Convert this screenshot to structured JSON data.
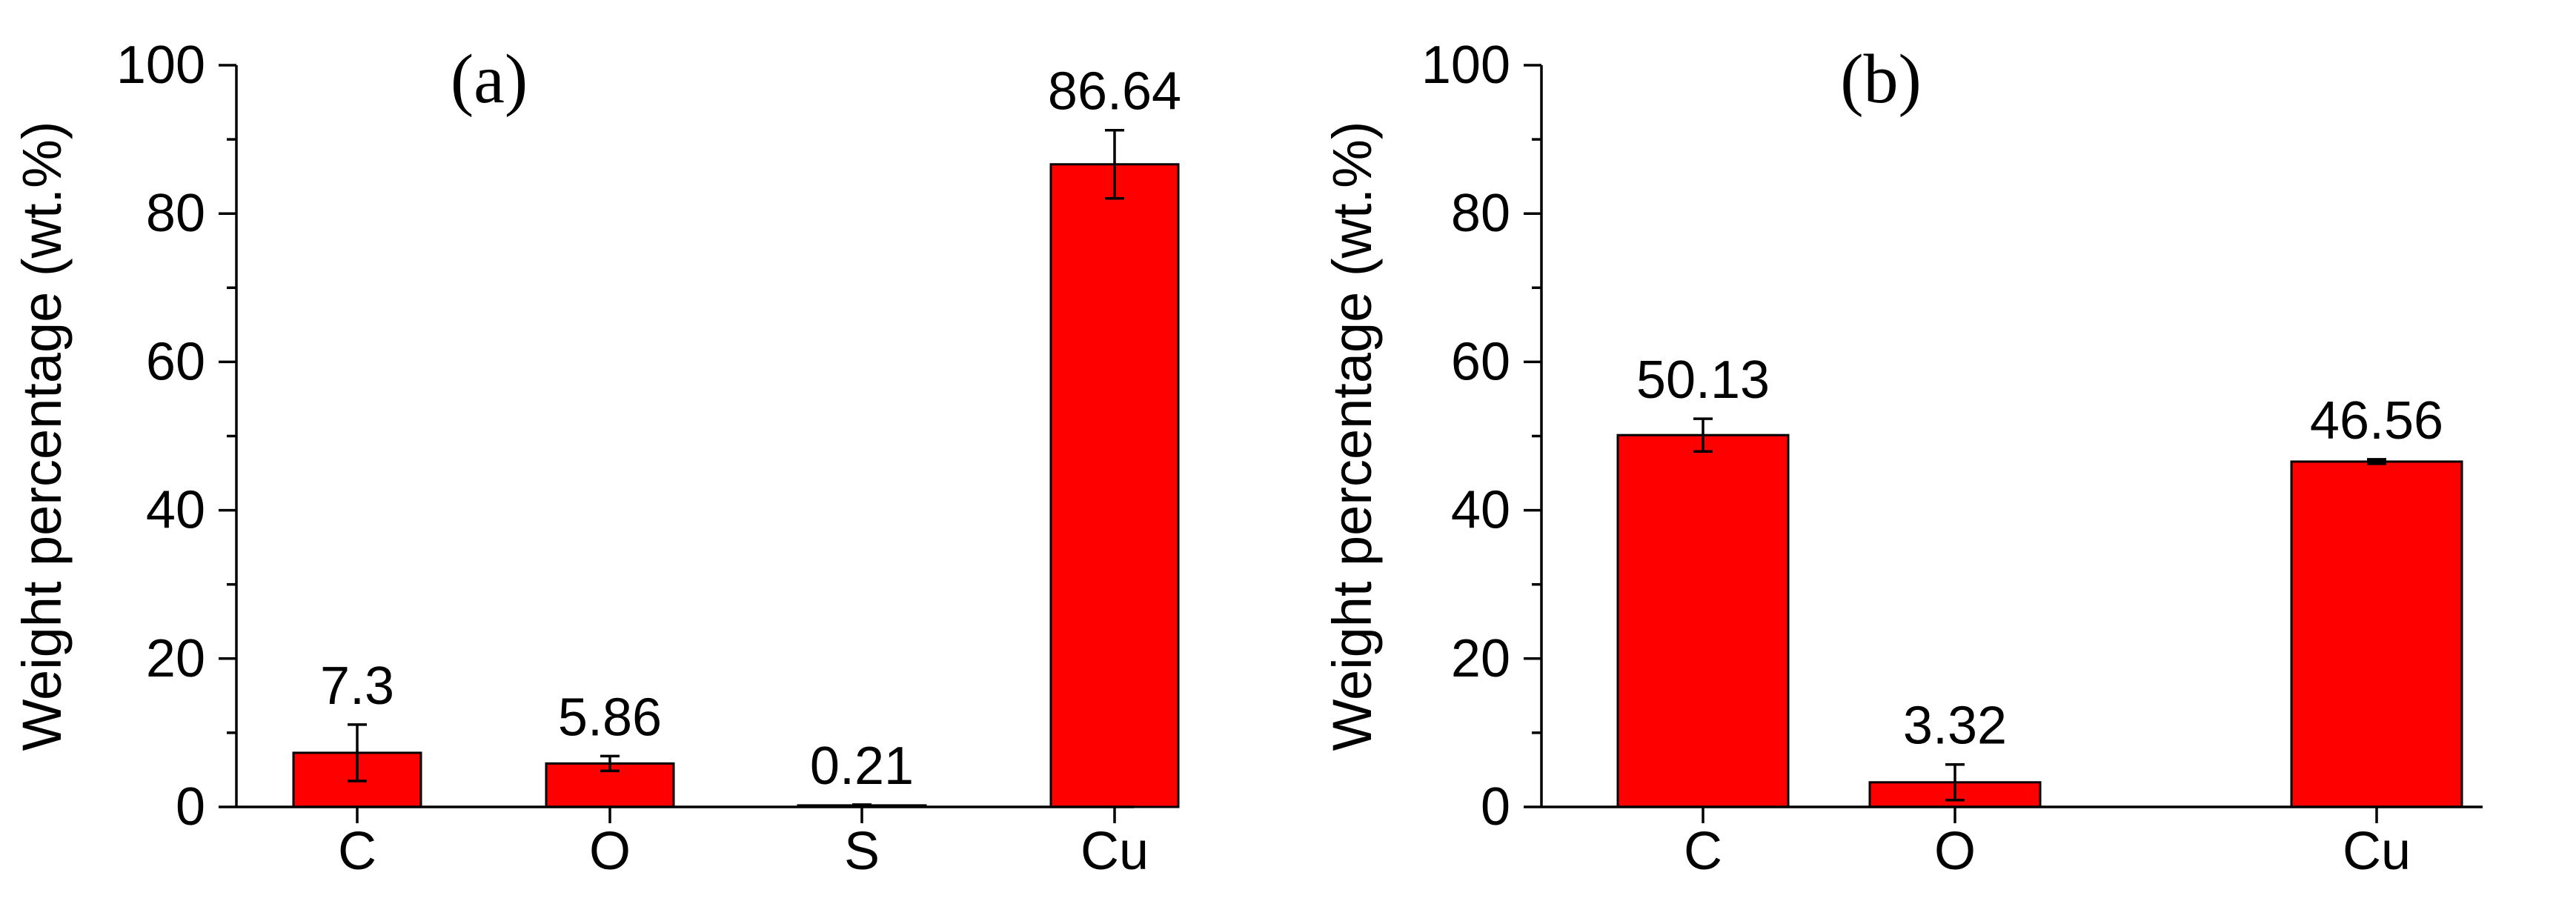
{
  "colors": {
    "bar_fill": "#ff0000",
    "bar_stroke": "#000000",
    "axis": "#000000",
    "background": "#ffffff"
  },
  "chart_data": [
    {
      "type": "bar",
      "panel_label": "(a)",
      "ylabel": "Weight percentage (wt.%)",
      "ylim": [
        0,
        100
      ],
      "yticks": [
        0,
        20,
        40,
        60,
        80,
        100
      ],
      "categories": [
        "C",
        "O",
        "S",
        "Cu"
      ],
      "values": [
        7.3,
        5.86,
        0.21,
        86.64
      ],
      "value_labels": [
        "7.3",
        "5.86",
        "0.21",
        "86.64"
      ],
      "errors": [
        3.8,
        1.0,
        0.1,
        4.6
      ],
      "grid": false,
      "legend": "none"
    },
    {
      "type": "bar",
      "panel_label": "(b)",
      "ylabel": "Weight percentage (wt.%)",
      "ylim": [
        0,
        100
      ],
      "yticks": [
        0,
        20,
        40,
        60,
        80,
        100
      ],
      "categories": [
        "C",
        "O",
        "Cu"
      ],
      "values": [
        50.13,
        3.32,
        46.56
      ],
      "value_labels": [
        "50.13",
        "3.32",
        "46.56"
      ],
      "errors": [
        2.2,
        2.4,
        0.3
      ],
      "grid": false,
      "legend": "none"
    }
  ]
}
